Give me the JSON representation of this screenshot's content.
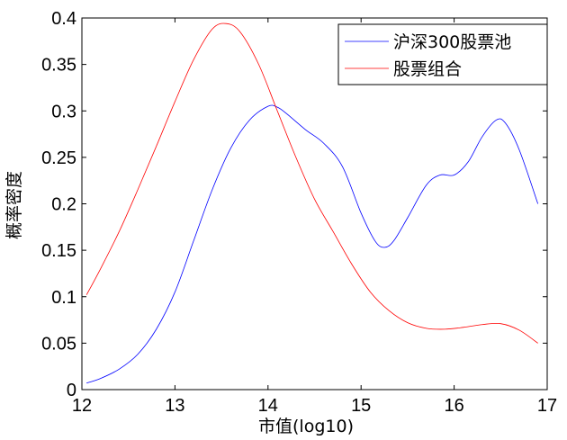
{
  "chart_data": {
    "type": "line",
    "xlabel": "市值(log10)",
    "ylabel": "概率密度",
    "xlim": [
      12,
      17
    ],
    "ylim": [
      0,
      0.4
    ],
    "xticks": [
      12,
      13,
      14,
      15,
      16,
      17
    ],
    "yticks": [
      0,
      0.05,
      0.1,
      0.15,
      0.2,
      0.25,
      0.3,
      0.35,
      0.4
    ],
    "xtick_labels": [
      "12",
      "13",
      "14",
      "15",
      "16",
      "17"
    ],
    "ytick_labels": [
      "0",
      "0.05",
      "0.1",
      "0.15",
      "0.2",
      "0.25",
      "0.3",
      "0.35",
      "0.4"
    ],
    "grid": false,
    "legend_position": "top-right",
    "series": [
      {
        "name": "沪深300股票池",
        "color": "#0000ff",
        "x": [
          12.05,
          12.2,
          12.4,
          12.6,
          12.8,
          13.0,
          13.2,
          13.4,
          13.6,
          13.8,
          14.0,
          14.1,
          14.2,
          14.4,
          14.6,
          14.8,
          15.0,
          15.15,
          15.25,
          15.35,
          15.5,
          15.7,
          15.85,
          16.0,
          16.15,
          16.3,
          16.45,
          16.55,
          16.7,
          16.9
        ],
        "y": [
          0.007,
          0.012,
          0.022,
          0.038,
          0.065,
          0.105,
          0.16,
          0.215,
          0.26,
          0.29,
          0.305,
          0.304,
          0.297,
          0.28,
          0.265,
          0.24,
          0.19,
          0.16,
          0.153,
          0.16,
          0.185,
          0.22,
          0.231,
          0.231,
          0.245,
          0.272,
          0.29,
          0.287,
          0.258,
          0.2
        ]
      },
      {
        "name": "股票组合",
        "color": "#ff0000",
        "x": [
          12.05,
          12.2,
          12.4,
          12.6,
          12.8,
          13.0,
          13.2,
          13.4,
          13.55,
          13.7,
          13.9,
          14.1,
          14.3,
          14.5,
          14.7,
          14.9,
          15.1,
          15.3,
          15.5,
          15.7,
          15.9,
          16.1,
          16.3,
          16.5,
          16.7,
          16.9
        ],
        "y": [
          0.102,
          0.13,
          0.17,
          0.215,
          0.262,
          0.31,
          0.355,
          0.388,
          0.394,
          0.385,
          0.35,
          0.3,
          0.25,
          0.205,
          0.17,
          0.135,
          0.105,
          0.085,
          0.072,
          0.066,
          0.065,
          0.067,
          0.07,
          0.071,
          0.064,
          0.05
        ]
      }
    ]
  }
}
